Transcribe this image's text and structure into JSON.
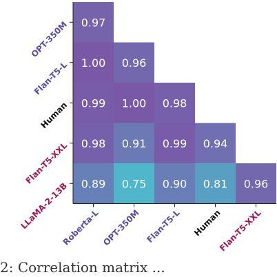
{
  "chart_data": {
    "type": "heatmap",
    "title": "",
    "rows": [
      {
        "label": "OPT-350M",
        "color": "#5b4aa8"
      },
      {
        "label": "Flan-T5-L",
        "color": "#5b4aa8"
      },
      {
        "label": "Human",
        "color": "#111111"
      },
      {
        "label": "Flan-T5-XXL",
        "color": "#a31852"
      },
      {
        "label": "LLaMA-2-13B",
        "color": "#a31852"
      }
    ],
    "columns": [
      {
        "label": "Roberta-L",
        "color": "#5b4aa8"
      },
      {
        "label": "OPT-350M",
        "color": "#5b4aa8"
      },
      {
        "label": "Flan-T5-L",
        "color": "#5b4aa8"
      },
      {
        "label": "Human",
        "color": "#111111"
      },
      {
        "label": "Flan-T5-XXL",
        "color": "#a31852"
      }
    ],
    "values": [
      [
        "0.97",
        null,
        null,
        null,
        null
      ],
      [
        "1.00",
        "0.96",
        null,
        null,
        null
      ],
      [
        "0.99",
        "1.00",
        "0.98",
        null,
        null
      ],
      [
        "0.98",
        "0.91",
        "0.99",
        "0.94",
        null
      ],
      [
        "0.89",
        "0.75",
        "0.90",
        "0.81",
        "0.96"
      ]
    ],
    "colorscale": {
      "low": "#4fb6cc",
      "high": "#7a58a8"
    },
    "value_range": [
      0.75,
      1.0
    ]
  },
  "caption": "2:  Correlation matrix  ..."
}
